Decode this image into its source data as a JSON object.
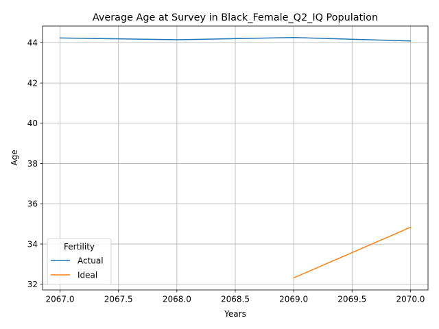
{
  "chart_data": {
    "type": "line",
    "title": "Average Age at Survey in Black_Female_Q2_IQ Population",
    "xlabel": "Years",
    "ylabel": "Age",
    "xlim": [
      2066.85,
      2070.15
    ],
    "ylim": [
      31.72,
      44.83
    ],
    "x_ticks": [
      2067.0,
      2067.5,
      2068.0,
      2068.5,
      2069.0,
      2069.5,
      2070.0
    ],
    "x_tick_labels": [
      "2067.0",
      "2067.5",
      "2068.0",
      "2068.5",
      "2069.0",
      "2069.5",
      "2070.0"
    ],
    "y_ticks": [
      32,
      34,
      36,
      38,
      40,
      42,
      44
    ],
    "y_tick_labels": [
      "32",
      "34",
      "36",
      "38",
      "40",
      "42",
      "44"
    ],
    "grid": true,
    "legend": {
      "title": "Fertility",
      "placement": "lower-left"
    },
    "series": [
      {
        "name": "Actual",
        "color": "#1f77b4",
        "points": [
          [
            2067,
            44.24
          ],
          [
            2068,
            44.15
          ],
          [
            2069,
            44.26
          ],
          [
            2070,
            44.09
          ]
        ]
      },
      {
        "name": "Ideal",
        "color": "#ff7f0e",
        "points": [
          [
            2069,
            32.32
          ],
          [
            2070,
            34.83
          ]
        ]
      }
    ]
  }
}
